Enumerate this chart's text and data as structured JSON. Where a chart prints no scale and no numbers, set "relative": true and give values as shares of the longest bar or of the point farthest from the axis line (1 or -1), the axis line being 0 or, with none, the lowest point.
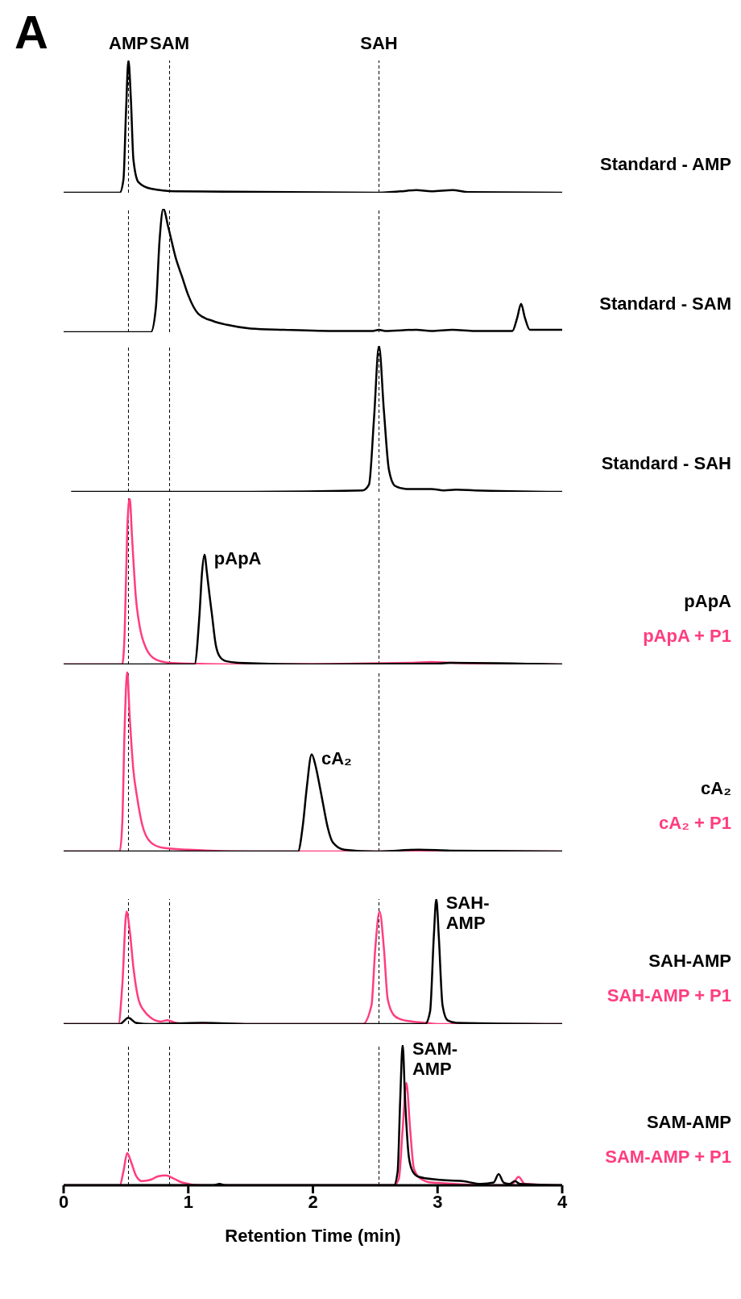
{
  "chart_data": [
    {
      "type": "line",
      "relative": true,
      "xlim": [
        0,
        4
      ],
      "tick_labels": false,
      "legend": "right",
      "annotations": [
        "A"
      ],
      "ref_lines": [
        {
          "axis": "x",
          "value": 0.52,
          "label": "AMP",
          "color": "#000000",
          "line_style": "dashed"
        },
        {
          "axis": "x",
          "value": 0.85,
          "label": "SAM",
          "color": "#000000",
          "line_style": "dashed"
        },
        {
          "axis": "x",
          "value": 2.53,
          "label": "SAH",
          "color": "#000000",
          "line_style": "dashed"
        }
      ],
      "series": [
        {
          "name": "Standard - AMP",
          "color": "#000000",
          "x": [
            0,
            0.45,
            0.48,
            0.5,
            0.52,
            0.54,
            0.56,
            0.6,
            0.7,
            0.9,
            2.5,
            2.7,
            2.83,
            2.95,
            3.12,
            3.25,
            4
          ],
          "values": [
            0,
            0,
            0.1,
            0.6,
            1,
            0.7,
            0.25,
            0.08,
            0.03,
            0.01,
            0,
            0.01,
            0.02,
            0.01,
            0.02,
            0.005,
            0
          ]
        }
      ]
    },
    {
      "type": "line",
      "relative": true,
      "xlim": [
        0,
        4
      ],
      "tick_labels": false,
      "legend": "right",
      "ref_lines": [
        {
          "axis": "x",
          "value": 0.52,
          "color": "#000000",
          "line_style": "dashed"
        },
        {
          "axis": "x",
          "value": 0.85,
          "color": "#000000",
          "line_style": "dashed"
        },
        {
          "axis": "x",
          "value": 2.53,
          "color": "#000000",
          "line_style": "dashed"
        }
      ],
      "series": [
        {
          "name": "Standard - SAM",
          "color": "#000000",
          "x": [
            0,
            0.7,
            0.74,
            0.77,
            0.8,
            0.84,
            0.9,
            0.95,
            1.0,
            1.08,
            1.2,
            1.31,
            1.5,
            1.77,
            2.2,
            2.48,
            2.53,
            2.58,
            2.83,
            2.95,
            3.12,
            3.3,
            3.6,
            3.64,
            3.67,
            3.7,
            3.74,
            4
          ],
          "values": [
            0,
            0,
            0.2,
            0.75,
            1,
            0.85,
            0.6,
            0.45,
            0.3,
            0.15,
            0.09,
            0.06,
            0.03,
            0.02,
            0.01,
            0.01,
            0.02,
            0.01,
            0.02,
            0.01,
            0.02,
            0.01,
            0.01,
            0.12,
            0.23,
            0.12,
            0.02,
            0.02
          ]
        }
      ]
    },
    {
      "type": "line",
      "relative": true,
      "xlim": [
        0,
        4
      ],
      "tick_labels": false,
      "legend": "right",
      "ref_lines": [
        {
          "axis": "x",
          "value": 0.52,
          "color": "#000000",
          "line_style": "dashed"
        },
        {
          "axis": "x",
          "value": 0.85,
          "color": "#000000",
          "line_style": "dashed"
        },
        {
          "axis": "x",
          "value": 2.53,
          "color": "#000000",
          "line_style": "dashed"
        }
      ],
      "series": [
        {
          "name": "Standard - SAH",
          "color": "#000000",
          "x": [
            0.06,
            1.5,
            2.4,
            2.45,
            2.49,
            2.53,
            2.57,
            2.61,
            2.66,
            2.75,
            2.95,
            3.05,
            3.15,
            3.3,
            4
          ],
          "values": [
            0,
            0,
            0.01,
            0.05,
            0.5,
            1,
            0.55,
            0.15,
            0.04,
            0.02,
            0.02,
            0.01,
            0.015,
            0.01,
            0
          ]
        }
      ]
    },
    {
      "type": "line",
      "relative": true,
      "xlim": [
        0,
        4
      ],
      "tick_labels": false,
      "legend": "right",
      "annotations": [
        {
          "text": "pApA",
          "x": 1.13,
          "y": 0.66
        }
      ],
      "ref_lines": [
        {
          "axis": "x",
          "value": 0.52,
          "color": "#000000",
          "line_style": "dashed"
        },
        {
          "axis": "x",
          "value": 0.85,
          "color": "#000000",
          "line_style": "dashed"
        },
        {
          "axis": "x",
          "value": 2.53,
          "color": "#000000",
          "line_style": "dashed"
        }
      ],
      "series": [
        {
          "name": "pApA + P1",
          "color": "#ff3d7f",
          "x": [
            0,
            0.47,
            0.49,
            0.51,
            0.53,
            0.55,
            0.58,
            0.61,
            0.66,
            0.74,
            0.85,
            1.0,
            1.5,
            2.8,
            2.95,
            3.1,
            4
          ],
          "values": [
            0,
            0,
            0.2,
            0.8,
            1,
            0.75,
            0.4,
            0.23,
            0.1,
            0.03,
            0.01,
            0.005,
            0,
            0.01,
            0.015,
            0.01,
            0
          ]
        },
        {
          "name": "pApA",
          "color": "#000000",
          "x": [
            0,
            1.05,
            1.09,
            1.11,
            1.13,
            1.15,
            1.17,
            1.19,
            1.22,
            1.25,
            1.3,
            1.4,
            2,
            3,
            3.1,
            4
          ],
          "values": [
            0,
            0,
            0.3,
            0.55,
            0.66,
            0.55,
            0.42,
            0.3,
            0.12,
            0.05,
            0.02,
            0.01,
            0,
            0.005,
            0.01,
            0
          ]
        }
      ]
    },
    {
      "type": "line",
      "relative": true,
      "xlim": [
        0,
        4
      ],
      "tick_labels": false,
      "legend": "right",
      "annotations": [
        {
          "text": "cA₂",
          "x": 1.99,
          "y": 0.54
        }
      ],
      "ref_lines": [
        {
          "axis": "x",
          "value": 0.52,
          "color": "#000000",
          "line_style": "dashed"
        },
        {
          "axis": "x",
          "value": 0.85,
          "color": "#000000",
          "line_style": "dashed"
        },
        {
          "axis": "x",
          "value": 2.53,
          "color": "#000000",
          "line_style": "dashed"
        }
      ],
      "series": [
        {
          "name": "cA₂ + P1",
          "color": "#ff3d7f",
          "x": [
            0,
            0.45,
            0.47,
            0.49,
            0.51,
            0.53,
            0.56,
            0.59,
            0.63,
            0.7,
            0.8,
            1.0,
            1.5,
            2.5,
            4
          ],
          "values": [
            0,
            0,
            0.15,
            0.7,
            1,
            0.75,
            0.45,
            0.3,
            0.15,
            0.05,
            0.02,
            0.01,
            0,
            0,
            0
          ]
        },
        {
          "name": "cA₂",
          "color": "#000000",
          "x": [
            0,
            1.88,
            1.92,
            1.95,
            1.99,
            2.02,
            2.05,
            2.08,
            2.12,
            2.16,
            2.25,
            2.5,
            2.85,
            3.1,
            4
          ],
          "values": [
            0,
            0,
            0.15,
            0.35,
            0.54,
            0.48,
            0.38,
            0.27,
            0.13,
            0.05,
            0.01,
            0,
            0.01,
            0.005,
            0
          ]
        }
      ]
    },
    {
      "type": "line",
      "relative": true,
      "xlim": [
        0,
        4
      ],
      "tick_labels": false,
      "legend": "right",
      "annotations": [
        {
          "text": "SAH-AMP",
          "x": 2.99,
          "y": 1
        }
      ],
      "ref_lines": [
        {
          "axis": "x",
          "value": 0.52,
          "color": "#000000",
          "line_style": "dashed"
        },
        {
          "axis": "x",
          "value": 0.85,
          "color": "#000000",
          "line_style": "dashed"
        },
        {
          "axis": "x",
          "value": 2.53,
          "color": "#000000",
          "line_style": "dashed"
        }
      ],
      "series": [
        {
          "name": "SAH-AMP + P1",
          "color": "#ff3d7f",
          "x": [
            0,
            0.44,
            0.47,
            0.505,
            0.53,
            0.56,
            0.6,
            0.65,
            0.7,
            0.78,
            0.83,
            0.9,
            1.0,
            2.4,
            2.47,
            2.5,
            2.535,
            2.57,
            2.6,
            2.65,
            2.7,
            2.8,
            2.9,
            3.0,
            4
          ],
          "values": [
            0,
            0,
            0.3,
            0.9,
            0.75,
            0.45,
            0.2,
            0.1,
            0.05,
            0.02,
            0.03,
            0.01,
            0,
            0,
            0.15,
            0.6,
            0.9,
            0.6,
            0.2,
            0.07,
            0.04,
            0.02,
            0.01,
            0,
            0
          ]
        },
        {
          "name": "SAH-AMP",
          "color": "#000000",
          "x": [
            0,
            0.45,
            0.52,
            0.58,
            0.7,
            1.1,
            1.5,
            2.9,
            2.94,
            2.97,
            2.99,
            3.01,
            3.04,
            3.08,
            3.15,
            4
          ],
          "values": [
            0,
            0,
            0.05,
            0.01,
            0,
            0.01,
            0,
            0,
            0.1,
            0.7,
            1,
            0.7,
            0.15,
            0.03,
            0.01,
            0
          ]
        }
      ]
    },
    {
      "type": "line",
      "relative": true,
      "xlim": [
        0,
        4
      ],
      "xticks": [
        0,
        1,
        2,
        3,
        4
      ],
      "xlabel": "Retention Time (min)",
      "legend": "right",
      "annotations": [
        {
          "text": "SAM-AMP",
          "x": 2.72,
          "y": 1
        }
      ],
      "ref_lines": [
        {
          "axis": "x",
          "value": 0.52,
          "color": "#000000",
          "line_style": "dashed"
        },
        {
          "axis": "x",
          "value": 0.85,
          "color": "#000000",
          "line_style": "dashed"
        },
        {
          "axis": "x",
          "value": 2.53,
          "color": "#000000",
          "line_style": "dashed"
        }
      ],
      "series": [
        {
          "name": "SAM-AMP + P1",
          "color": "#ff3d7f",
          "x": [
            0,
            0.45,
            0.48,
            0.51,
            0.54,
            0.58,
            0.63,
            0.7,
            0.76,
            0.82,
            0.88,
            0.95,
            1.1,
            2.65,
            2.69,
            2.72,
            2.75,
            2.78,
            2.81,
            2.86,
            2.95,
            3.5,
            3.6,
            3.65,
            3.7,
            4
          ],
          "values": [
            0,
            0,
            0.1,
            0.23,
            0.17,
            0.07,
            0.03,
            0.04,
            0.065,
            0.07,
            0.05,
            0.02,
            0,
            0,
            0.05,
            0.4,
            0.73,
            0.4,
            0.12,
            0.05,
            0.02,
            0,
            0.01,
            0.06,
            0.01,
            0
          ]
        },
        {
          "name": "SAM-AMP",
          "color": "#000000",
          "x": [
            0,
            1.2,
            1.25,
            1.3,
            2.65,
            2.68,
            2.7,
            2.72,
            2.74,
            2.77,
            2.8,
            2.85,
            3.0,
            3.2,
            3.35,
            3.45,
            3.49,
            3.53,
            3.58,
            3.62,
            3.66,
            4
          ],
          "values": [
            0,
            0,
            0.01,
            0,
            0,
            0.1,
            0.6,
            1,
            0.6,
            0.2,
            0.1,
            0.06,
            0.04,
            0.03,
            0.01,
            0.02,
            0.08,
            0.02,
            0.01,
            0.03,
            0.01,
            0
          ]
        }
      ]
    }
  ]
}
